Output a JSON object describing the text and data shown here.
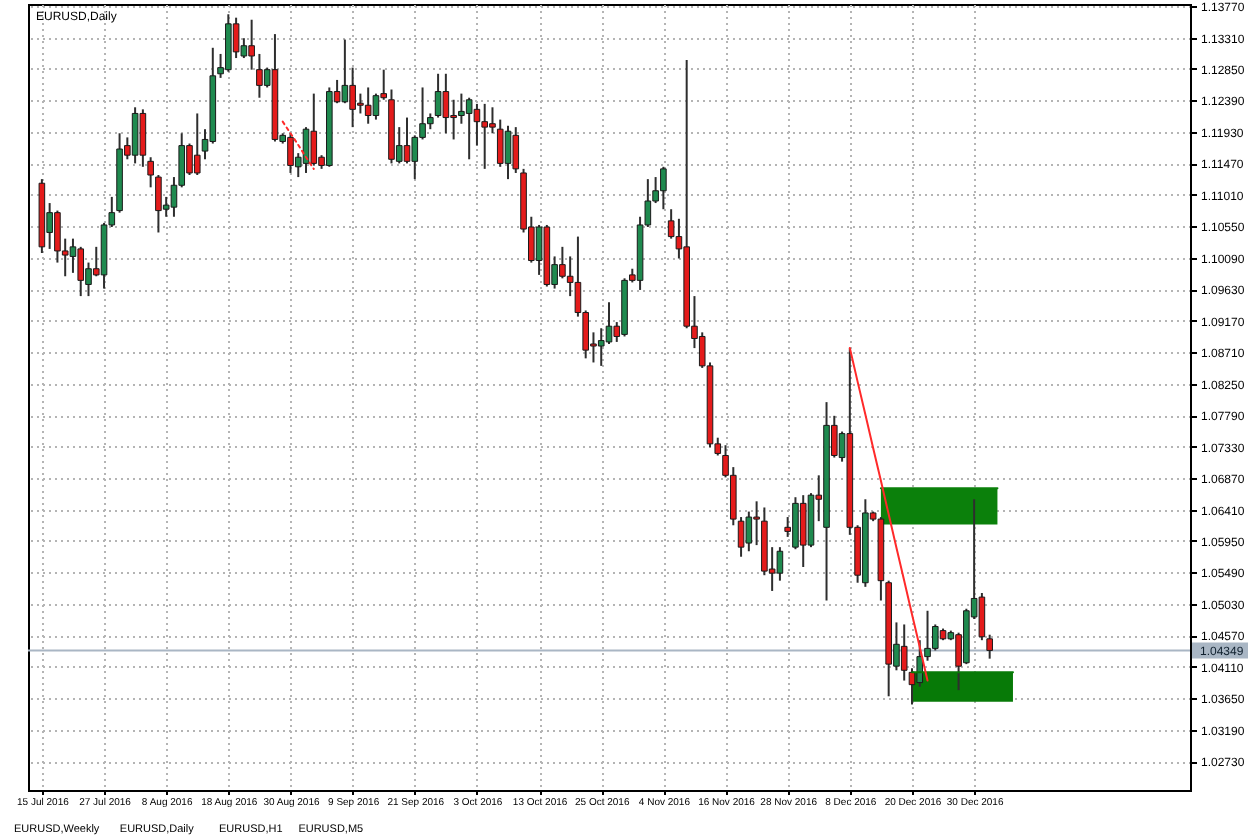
{
  "chart_data": {
    "type": "candlestick",
    "title": "EURUSD,Daily",
    "categories": [
      "15 Jul 2016",
      null,
      null,
      null,
      null,
      null,
      null,
      null,
      "27 Jul 2016",
      null,
      null,
      null,
      null,
      null,
      null,
      null,
      "8 Aug 2016",
      null,
      null,
      null,
      null,
      null,
      null,
      null,
      "18 Aug 2016",
      null,
      null,
      null,
      null,
      null,
      null,
      null,
      "30 Aug 2016",
      null,
      null,
      null,
      null,
      null,
      null,
      null,
      "9 Sep 2016",
      null,
      null,
      null,
      null,
      null,
      null,
      null,
      "21 Sep 2016",
      null,
      null,
      null,
      null,
      null,
      null,
      null,
      "3 Oct 2016",
      null,
      null,
      null,
      null,
      null,
      null,
      null,
      "13 Oct 2016",
      null,
      null,
      null,
      null,
      null,
      null,
      null,
      "25 Oct 2016",
      null,
      null,
      null,
      null,
      null,
      null,
      null,
      "4 Nov 2016",
      null,
      null,
      null,
      null,
      null,
      null,
      null,
      "16 Nov 2016",
      null,
      null,
      null,
      null,
      null,
      null,
      null,
      "28 Nov 2016",
      null,
      null,
      null,
      null,
      null,
      null,
      null,
      "8 Dec 2016",
      null,
      null,
      null,
      null,
      null,
      null,
      null,
      "20 Dec 2016",
      null,
      null,
      null,
      null,
      null,
      null,
      null,
      "30 Dec 2016",
      null,
      null,
      null,
      null,
      null,
      null,
      null,
      null,
      null,
      null,
      null,
      null,
      null,
      null,
      null,
      null,
      null,
      null,
      null,
      null,
      null,
      null,
      null,
      null,
      null,
      null
    ],
    "ohlc": [
      [
        1.1118,
        1.1124,
        1.1016,
        1.1025
      ],
      [
        1.1046,
        1.1089,
        1.1022,
        1.1075
      ],
      [
        1.1075,
        1.1078,
        1.1002,
        1.1019
      ],
      [
        1.1019,
        1.1037,
        1.0982,
        1.1013
      ],
      [
        1.1011,
        1.1037,
        1.0987,
        1.1025
      ],
      [
        1.1022,
        1.1025,
        1.0953,
        1.0976
      ],
      [
        1.097,
        1.1002,
        1.0953,
        1.0993
      ],
      [
        1.0993,
        1.1025,
        1.0982,
        1.0984
      ],
      [
        1.0984,
        1.106,
        1.0964,
        1.1057
      ],
      [
        1.1057,
        1.1098,
        1.1054,
        1.1075
      ],
      [
        1.1078,
        1.1191,
        1.1075,
        1.1168
      ],
      [
        1.1173,
        1.1185,
        1.1153,
        1.1159
      ],
      [
        1.1159,
        1.1229,
        1.1147,
        1.122
      ],
      [
        1.122,
        1.1226,
        1.1142,
        1.1159
      ],
      [
        1.115,
        1.1156,
        1.1112,
        1.113
      ],
      [
        1.1127,
        1.113,
        1.1046,
        1.1078
      ],
      [
        1.108,
        1.1098,
        1.1069,
        1.1086
      ],
      [
        1.1083,
        1.1127,
        1.1069,
        1.1115
      ],
      [
        1.1115,
        1.1191,
        1.1112,
        1.1173
      ],
      [
        1.1173,
        1.1176,
        1.113,
        1.1133
      ],
      [
        1.1159,
        1.122,
        1.113,
        1.1133
      ],
      [
        1.1165,
        1.1197,
        1.1153,
        1.1182
      ],
      [
        1.1179,
        1.1316,
        1.1176,
        1.1275
      ],
      [
        1.1278,
        1.1307,
        1.1272,
        1.1287
      ],
      [
        1.1284,
        1.1365,
        1.1281,
        1.1351
      ],
      [
        1.1351,
        1.136,
        1.1301,
        1.131
      ],
      [
        1.1304,
        1.133,
        1.1301,
        1.1319
      ],
      [
        1.1319,
        1.1357,
        1.1284,
        1.1304
      ],
      [
        1.1284,
        1.1307,
        1.1243,
        1.1261
      ],
      [
        1.1261,
        1.1287,
        1.1258,
        1.1284
      ],
      [
        1.1284,
        1.1336,
        1.1179,
        1.1182
      ],
      [
        1.1179,
        1.1191,
        1.1176,
        1.1188
      ],
      [
        1.1185,
        1.1191,
        1.1133,
        1.1144
      ],
      [
        1.1142,
        1.1162,
        1.1127,
        1.1156
      ],
      [
        1.1147,
        1.12,
        1.1133,
        1.1197
      ],
      [
        1.1194,
        1.1249,
        1.1144,
        1.1147
      ],
      [
        1.1156,
        1.1159,
        1.1139,
        1.1144
      ],
      [
        1.1144,
        1.1258,
        1.1142,
        1.1252
      ],
      [
        1.1252,
        1.1269,
        1.1235,
        1.1237
      ],
      [
        1.1237,
        1.1328,
        1.1235,
        1.1261
      ],
      [
        1.1261,
        1.1287,
        1.12,
        1.1226
      ],
      [
        1.1235,
        1.1249,
        1.122,
        1.1232
      ],
      [
        1.1232,
        1.1258,
        1.1205,
        1.1217
      ],
      [
        1.1217,
        1.1249,
        1.1211,
        1.1246
      ],
      [
        1.1249,
        1.1284,
        1.124,
        1.1243
      ],
      [
        1.124,
        1.1255,
        1.1147,
        1.1153
      ],
      [
        1.115,
        1.12,
        1.1147,
        1.1173
      ],
      [
        1.1173,
        1.1214,
        1.1147,
        1.115
      ],
      [
        1.115,
        1.1188,
        1.1124,
        1.1185
      ],
      [
        1.1185,
        1.1258,
        1.1182,
        1.1205
      ],
      [
        1.1205,
        1.122,
        1.1197,
        1.1214
      ],
      [
        1.1217,
        1.1278,
        1.1214,
        1.1252
      ],
      [
        1.1252,
        1.1278,
        1.1191,
        1.1214
      ],
      [
        1.1217,
        1.124,
        1.1182,
        1.1214
      ],
      [
        1.1217,
        1.1249,
        1.1205,
        1.1223
      ],
      [
        1.122,
        1.1243,
        1.1153,
        1.124
      ],
      [
        1.1226,
        1.1234,
        1.1173,
        1.1208
      ],
      [
        1.1208,
        1.1234,
        1.1139,
        1.12
      ],
      [
        1.1205,
        1.1229,
        1.1191,
        1.12
      ],
      [
        1.1197,
        1.1211,
        1.1142,
        1.1147
      ],
      [
        1.1147,
        1.1202,
        1.1124,
        1.1194
      ],
      [
        1.1188,
        1.12,
        1.1133,
        1.1139
      ],
      [
        1.1133,
        1.1139,
        1.1046,
        1.1051
      ],
      [
        1.1054,
        1.1069,
        1.1002,
        1.1005
      ],
      [
        1.1005,
        1.1057,
        1.0984,
        1.1054
      ],
      [
        1.1054,
        1.1057,
        1.0967,
        1.097
      ],
      [
        1.097,
        1.1011,
        1.0964,
        1.0999
      ],
      [
        1.0999,
        1.1025,
        1.0979,
        1.0982
      ],
      [
        1.0982,
        1.1011,
        1.0953,
        1.0973
      ],
      [
        1.0973,
        1.104,
        1.0923,
        1.0929
      ],
      [
        1.0929,
        1.0932,
        1.0862,
        1.0874
      ],
      [
        1.0883,
        1.09,
        1.0856,
        1.088
      ],
      [
        1.088,
        1.0906,
        1.0851,
        1.0888
      ],
      [
        1.0886,
        1.0944,
        1.0883,
        1.0909
      ],
      [
        1.0909,
        1.0915,
        1.0886,
        1.0894
      ],
      [
        1.0897,
        1.0979,
        1.0894,
        1.0976
      ],
      [
        1.0984,
        1.0993,
        1.0973,
        1.0976
      ],
      [
        1.0976,
        1.1069,
        1.0962,
        1.1057
      ],
      [
        1.1057,
        1.1124,
        1.1054,
        1.1092
      ],
      [
        1.1092,
        1.1127,
        1.1089,
        1.1107
      ],
      [
        1.1107,
        1.1142,
        1.108,
        1.1139
      ],
      [
        1.1063,
        1.108,
        1.1037,
        1.104
      ],
      [
        1.104,
        1.1066,
        1.1008,
        1.1022
      ],
      [
        1.1025,
        1.1298,
        1.0906,
        1.0909
      ],
      [
        1.0909,
        1.0953,
        1.0877,
        1.0891
      ],
      [
        1.0894,
        1.09,
        1.0848,
        1.0851
      ],
      [
        1.0851,
        1.0856,
        1.0732,
        1.0737
      ],
      [
        1.0737,
        1.0746,
        1.072,
        1.0723
      ],
      [
        1.072,
        1.0735,
        1.0688,
        1.0691
      ],
      [
        1.0691,
        1.0703,
        1.0618,
        1.0627
      ],
      [
        1.0624,
        1.063,
        1.0572,
        1.0586
      ],
      [
        1.0592,
        1.0638,
        1.058,
        1.063
      ],
      [
        1.063,
        1.0653,
        1.0589,
        1.0627
      ],
      [
        1.0624,
        1.0644,
        1.0545,
        1.0551
      ],
      [
        1.0554,
        1.0586,
        1.0522,
        1.0548
      ],
      [
        1.0548,
        1.0586,
        1.0537,
        1.058
      ],
      [
        1.0615,
        1.063,
        1.0601,
        1.0609
      ],
      [
        1.0586,
        1.0659,
        1.0583,
        1.065
      ],
      [
        1.065,
        1.0662,
        1.0557,
        1.0589
      ],
      [
        1.0589,
        1.0665,
        1.0586,
        1.0662
      ],
      [
        1.0662,
        1.0691,
        1.0624,
        1.0656
      ],
      [
        1.0615,
        1.0798,
        1.0508,
        1.0764
      ],
      [
        1.0764,
        1.0778,
        1.0717,
        1.072
      ],
      [
        1.0717,
        1.0755,
        1.0711,
        1.0752
      ],
      [
        1.0752,
        1.0877,
        1.0604,
        1.0615
      ],
      [
        1.0615,
        1.0618,
        1.0534,
        1.0545
      ],
      [
        1.0534,
        1.0656,
        1.0528,
        1.0636
      ],
      [
        1.0636,
        1.0638,
        1.0624,
        1.0627
      ],
      [
        1.0627,
        1.063,
        1.0508,
        1.0537
      ],
      [
        1.0534,
        1.0537,
        1.0368,
        1.0415
      ],
      [
        1.0412,
        1.0476,
        1.0406,
        1.0444
      ],
      [
        1.0441,
        1.0473,
        1.0391,
        1.0406
      ],
      [
        1.0403,
        1.0409,
        1.0356,
        1.0385
      ],
      [
        1.0388,
        1.045,
        1.0382,
        1.0426
      ],
      [
        1.0426,
        1.0493,
        1.042,
        1.0438
      ],
      [
        1.0438,
        1.0473,
        1.0435,
        1.047
      ],
      [
        1.0464,
        1.0467,
        1.045,
        1.0452
      ],
      [
        1.0452,
        1.0464,
        1.045,
        1.0461
      ],
      [
        1.0458,
        1.0461,
        1.0377,
        1.0412
      ],
      [
        1.0417,
        1.0496,
        1.0415,
        1.0493
      ],
      [
        1.0484,
        1.0656,
        1.0481,
        1.0511
      ],
      [
        1.0513,
        1.0519,
        1.045,
        1.0455
      ],
      [
        1.0452,
        1.0458,
        1.0423,
        1.0435
      ],
      null,
      null,
      null,
      null,
      null,
      null,
      null,
      null,
      null,
      null,
      null,
      null,
      null,
      null,
      null,
      null,
      null,
      null,
      null,
      null,
      null,
      null,
      null,
      null
    ],
    "colors": [
      "#e41b1b",
      "#1f8a4f",
      "#e41b1b",
      "#e41b1b",
      "#1f8a4f",
      "#e41b1b",
      "#1f8a4f",
      "#e41b1b",
      "#1f8a4f",
      "#1f8a4f",
      "#1f8a4f",
      "#e41b1b",
      "#1f8a4f",
      "#e41b1b",
      "#e41b1b",
      "#e41b1b",
      "#1f8a4f",
      "#1f8a4f",
      "#1f8a4f",
      "#e41b1b",
      "#e41b1b",
      "#1f8a4f",
      "#1f8a4f",
      "#1f8a4f",
      "#1f8a4f",
      "#e41b1b",
      "#1f8a4f",
      "#e41b1b",
      "#e41b1b",
      "#1f8a4f",
      "#e41b1b",
      "#1f8a4f",
      "#e41b1b",
      "#1f8a4f",
      "#1f8a4f",
      "#e41b1b",
      "#e41b1b",
      "#1f8a4f",
      "#e41b1b",
      "#1f8a4f",
      "#e41b1b",
      "#e41b1b",
      "#e41b1b",
      "#1f8a4f",
      "#e41b1b",
      "#e41b1b",
      "#1f8a4f",
      "#e41b1b",
      "#1f8a4f",
      "#1f8a4f",
      "#1f8a4f",
      "#1f8a4f",
      "#e41b1b",
      "#e41b1b",
      "#1f8a4f",
      "#1f8a4f",
      "#e41b1b",
      "#e41b1b",
      "#e41b1b",
      "#e41b1b",
      "#1f8a4f",
      "#e41b1b",
      "#e41b1b",
      "#e41b1b",
      "#1f8a4f",
      "#e41b1b",
      "#1f8a4f",
      "#e41b1b",
      "#e41b1b",
      "#e41b1b",
      "#e41b1b",
      "#e41b1b",
      "#1f8a4f",
      "#1f8a4f",
      "#e41b1b",
      "#1f8a4f",
      "#e41b1b",
      "#1f8a4f",
      "#1f8a4f",
      "#1f8a4f",
      "#1f8a4f",
      "#e41b1b",
      "#e41b1b",
      "#e41b1b",
      "#e41b1b",
      "#e41b1b",
      "#e41b1b",
      "#e41b1b",
      "#e41b1b",
      "#e41b1b",
      "#e41b1b",
      "#1f8a4f",
      "#e41b1b",
      "#e41b1b",
      "#e41b1b",
      "#1f8a4f",
      "#e41b1b",
      "#1f8a4f",
      "#e41b1b",
      "#1f8a4f",
      "#e41b1b",
      "#1f8a4f",
      "#e41b1b",
      "#1f8a4f",
      "#e41b1b",
      "#e41b1b",
      "#1f8a4f",
      "#e41b1b",
      "#e41b1b",
      "#e41b1b",
      "#1f8a4f",
      "#e41b1b",
      "#e41b1b",
      "#1f8a4f",
      "#1f8a4f",
      "#1f8a4f",
      "#e41b1b",
      "#1f8a4f",
      "#e41b1b",
      "#1f8a4f",
      "#1f8a4f",
      "#e41b1b",
      "#e41b1b",
      null,
      null,
      null,
      null,
      null,
      null,
      null,
      null,
      null,
      null,
      null,
      null,
      null,
      null,
      null,
      null,
      null,
      null,
      null,
      null,
      null,
      null,
      null,
      null
    ],
    "ylim": [
      1.0231,
      1.138
    ],
    "yticks": [
      {
        "value": 1.0273,
        "label": "1.02730"
      },
      {
        "value": 1.0319,
        "label": "1.03190"
      },
      {
        "value": 1.0365,
        "label": "1.03650"
      },
      {
        "value": 1.0411,
        "label": "1.04110"
      },
      {
        "value": 1.0457,
        "label": "1.04570"
      },
      {
        "value": 1.0503,
        "label": "1.05030"
      },
      {
        "value": 1.0549,
        "label": "1.05490"
      },
      {
        "value": 1.0595,
        "label": "1.05950"
      },
      {
        "value": 1.0641,
        "label": "1.06410"
      },
      {
        "value": 1.0687,
        "label": "1.06870"
      },
      {
        "value": 1.0733,
        "label": "1.07330"
      },
      {
        "value": 1.0779,
        "label": "1.07790"
      },
      {
        "value": 1.0825,
        "label": "1.08250"
      },
      {
        "value": 1.0871,
        "label": "1.08710"
      },
      {
        "value": 1.0917,
        "label": "1.09170"
      },
      {
        "value": 1.0963,
        "label": "1.09630"
      },
      {
        "value": 1.1009,
        "label": "1.10090"
      },
      {
        "value": 1.1055,
        "label": "1.10550"
      },
      {
        "value": 1.1101,
        "label": "1.11010"
      },
      {
        "value": 1.1147,
        "label": "1.11470"
      },
      {
        "value": 1.1193,
        "label": "1.11930"
      },
      {
        "value": 1.1239,
        "label": "1.12390"
      },
      {
        "value": 1.1285,
        "label": "1.12850"
      },
      {
        "value": 1.1331,
        "label": "1.13310"
      },
      {
        "value": 1.1377,
        "label": "1.13770"
      }
    ],
    "grid": true,
    "series": [
      {
        "type": "line",
        "color": "#0b800b",
        "values": [
          null,
          null,
          null,
          null,
          null,
          null,
          null,
          null,
          null,
          null,
          null,
          null,
          null,
          null,
          null,
          null,
          null,
          null,
          null,
          null,
          null,
          null,
          null,
          null,
          null,
          null,
          null,
          null,
          null,
          null,
          null,
          null,
          null,
          null,
          null,
          null,
          null,
          null,
          null,
          null,
          null,
          null,
          null,
          null,
          null,
          null,
          null,
          null,
          null,
          null,
          null,
          null,
          null,
          null,
          null,
          null,
          null,
          null,
          null,
          null,
          null,
          null,
          null,
          null,
          null,
          null,
          null,
          null,
          null,
          null,
          null,
          null,
          null,
          null,
          null,
          null,
          null,
          null,
          null,
          null,
          null,
          null,
          null,
          null,
          null,
          null,
          null,
          null,
          null,
          null,
          null,
          null,
          null,
          null,
          null,
          null,
          null,
          null,
          null,
          null,
          null,
          null,
          null,
          null,
          null,
          null,
          null,
          null,
          1.0672,
          1.0672,
          1.0672,
          1.0672,
          1.0672,
          1.0672,
          1.0672,
          1.0672,
          1.0672,
          1.0672,
          1.0672,
          1.0672,
          1.0672,
          1.0672,
          1.0672,
          1.0672,
          null,
          null,
          null,
          null,
          null,
          null,
          null,
          null,
          null,
          null,
          null,
          null,
          null,
          null,
          null,
          null,
          null,
          null,
          null,
          null,
          null,
          null,
          null
        ],
        "upper": [
          null,
          null,
          null,
          null,
          null,
          null,
          null,
          null,
          null,
          null,
          null,
          null,
          null,
          null,
          null,
          null,
          null,
          null,
          null,
          null,
          null,
          null,
          null,
          null,
          null,
          null,
          null,
          null,
          null,
          null,
          null,
          null,
          null,
          null,
          null,
          null,
          null,
          null,
          null,
          null,
          null,
          null,
          null,
          null,
          null,
          null,
          null,
          null,
          null,
          null,
          null,
          null,
          null,
          null,
          null,
          null,
          null,
          null,
          null,
          null,
          null,
          null,
          null,
          null,
          null,
          null,
          null,
          null,
          null,
          null,
          null,
          null,
          null,
          null,
          null,
          null,
          null,
          null,
          null,
          null,
          null,
          null,
          null,
          null,
          null,
          null,
          null,
          null,
          null,
          null,
          null,
          null,
          null,
          null,
          null,
          null,
          null,
          null,
          null,
          null,
          null,
          null,
          null,
          null,
          null,
          null,
          null,
          null,
          1.0672,
          1.0672,
          1.0672,
          1.0672,
          1.0672,
          1.0672,
          1.0672,
          1.0672,
          1.0672,
          1.0672,
          1.0672,
          1.0672,
          1.0672,
          1.0672,
          1.0672,
          1.0672,
          null,
          null,
          null,
          null,
          null,
          null,
          null,
          null,
          null,
          null,
          null,
          null,
          null,
          null,
          null,
          null,
          null,
          null,
          null,
          null,
          null,
          null,
          null
        ],
        "lower": [
          null,
          null,
          null,
          null,
          null,
          null,
          null,
          null,
          null,
          null,
          null,
          null,
          null,
          null,
          null,
          null,
          null,
          null,
          null,
          null,
          null,
          null,
          null,
          null,
          null,
          null,
          null,
          null,
          null,
          null,
          null,
          null,
          null,
          null,
          null,
          null,
          null,
          null,
          null,
          null,
          null,
          null,
          null,
          null,
          null,
          null,
          null,
          null,
          null,
          null,
          null,
          null,
          null,
          null,
          null,
          null,
          null,
          null,
          null,
          null,
          null,
          null,
          null,
          null,
          null,
          null,
          null,
          null,
          null,
          null,
          null,
          null,
          null,
          null,
          null,
          null,
          null,
          null,
          null,
          null,
          null,
          null,
          null,
          null,
          null,
          null,
          null,
          null,
          null,
          null,
          null,
          null,
          null,
          null,
          null,
          null,
          null,
          null,
          null,
          null,
          null,
          null,
          null,
          null,
          null,
          null,
          null,
          null,
          1.0619,
          1.0619,
          1.0619,
          1.0619,
          1.0619,
          1.0619,
          1.0619,
          1.0619,
          1.0619,
          1.0619,
          1.0619,
          1.0619,
          1.0619,
          1.0619,
          1.0619,
          1.0619,
          null,
          null,
          null,
          null,
          null,
          null,
          null,
          null,
          null,
          null,
          null,
          null,
          null,
          null,
          null,
          null,
          null,
          null,
          null,
          null,
          null,
          null,
          null
        ]
      },
      {
        "type": "line",
        "color": "#077a07",
        "values": [
          null,
          null,
          null,
          null,
          null,
          null,
          null,
          null,
          null,
          null,
          null,
          null,
          null,
          null,
          null,
          null,
          null,
          null,
          null,
          null,
          null,
          null,
          null,
          null,
          null,
          null,
          null,
          null,
          null,
          null,
          null,
          null,
          null,
          null,
          null,
          null,
          null,
          null,
          null,
          null,
          null,
          null,
          null,
          null,
          null,
          null,
          null,
          null,
          null,
          null,
          null,
          null,
          null,
          null,
          null,
          null,
          null,
          null,
          null,
          null,
          null,
          null,
          null,
          null,
          null,
          null,
          null,
          null,
          null,
          null,
          null,
          null,
          null,
          null,
          null,
          null,
          null,
          null,
          null,
          null,
          null,
          null,
          null,
          null,
          null,
          null,
          null,
          null,
          null,
          null,
          null,
          null,
          null,
          null,
          null,
          null,
          null,
          null,
          null,
          null,
          null,
          null,
          null,
          null,
          null,
          null,
          null,
          null,
          null,
          null,
          null,
          null,
          1.0403,
          1.0403,
          1.0403,
          1.0403,
          1.0403,
          1.0403,
          1.0403,
          1.0403,
          1.0403,
          1.0403,
          1.0403,
          1.0403,
          1.0403,
          1.0403,
          null,
          null,
          null,
          null,
          null,
          null,
          null,
          null,
          null,
          null,
          null,
          null,
          null,
          null,
          null,
          null,
          null,
          null,
          null,
          null,
          null
        ],
        "upper": [
          null,
          null,
          null,
          null,
          null,
          null,
          null,
          null,
          null,
          null,
          null,
          null,
          null,
          null,
          null,
          null,
          null,
          null,
          null,
          null,
          null,
          null,
          null,
          null,
          null,
          null,
          null,
          null,
          null,
          null,
          null,
          null,
          null,
          null,
          null,
          null,
          null,
          null,
          null,
          null,
          null,
          null,
          null,
          null,
          null,
          null,
          null,
          null,
          null,
          null,
          null,
          null,
          null,
          null,
          null,
          null,
          null,
          null,
          null,
          null,
          null,
          null,
          null,
          null,
          null,
          null,
          null,
          null,
          null,
          null,
          null,
          null,
          null,
          null,
          null,
          null,
          null,
          null,
          null,
          null,
          null,
          null,
          null,
          null,
          null,
          null,
          null,
          null,
          null,
          null,
          null,
          null,
          null,
          null,
          null,
          null,
          null,
          null,
          null,
          null,
          null,
          null,
          null,
          null,
          null,
          null,
          null,
          null,
          null,
          null,
          null,
          null,
          1.0403,
          1.0403,
          1.0403,
          1.0403,
          1.0403,
          1.0403,
          1.0403,
          1.0403,
          1.0403,
          1.0403,
          1.0403,
          1.0403,
          1.0403,
          1.0403,
          null,
          null,
          null,
          null,
          null,
          null,
          null,
          null,
          null,
          null,
          null,
          null,
          null,
          null,
          null,
          null,
          null,
          null,
          null,
          null,
          null
        ],
        "lower": [
          null,
          null,
          null,
          null,
          null,
          null,
          null,
          null,
          null,
          null,
          null,
          null,
          null,
          null,
          null,
          null,
          null,
          null,
          null,
          null,
          null,
          null,
          null,
          null,
          null,
          null,
          null,
          null,
          null,
          null,
          null,
          null,
          null,
          null,
          null,
          null,
          null,
          null,
          null,
          null,
          null,
          null,
          null,
          null,
          null,
          null,
          null,
          null,
          null,
          null,
          null,
          null,
          null,
          null,
          null,
          null,
          null,
          null,
          null,
          null,
          null,
          null,
          null,
          null,
          null,
          null,
          null,
          null,
          null,
          null,
          null,
          null,
          null,
          null,
          null,
          null,
          null,
          null,
          null,
          null,
          null,
          null,
          null,
          null,
          null,
          null,
          null,
          null,
          null,
          null,
          null,
          null,
          null,
          null,
          null,
          null,
          null,
          null,
          null,
          null,
          null,
          null,
          null,
          null,
          null,
          null,
          null,
          null,
          null,
          null,
          null,
          null,
          1.036,
          1.036,
          1.036,
          1.036,
          1.036,
          1.036,
          1.036,
          1.036,
          1.036,
          1.036,
          1.036,
          1.036,
          1.036,
          1.036,
          null,
          null,
          null,
          null,
          null,
          null,
          null,
          null,
          null,
          null,
          null,
          null,
          null,
          null,
          null,
          null,
          null,
          null,
          null,
          null,
          null
        ]
      },
      {
        "type": "line",
        "color": "#ff2a2a",
        "line_style": "dotted",
        "values": [
          null,
          null,
          null,
          null,
          null,
          null,
          null,
          null,
          null,
          null,
          null,
          null,
          null,
          null,
          null,
          null,
          null,
          null,
          null,
          null,
          null,
          null,
          null,
          null,
          null,
          null,
          null,
          null,
          null,
          null,
          null,
          1.1208,
          1.1191,
          1.1174,
          1.1156,
          1.1139,
          null,
          null,
          null,
          null,
          null,
          null,
          null,
          null,
          null,
          null,
          null,
          null,
          null,
          null,
          null,
          null,
          null,
          null,
          null,
          null,
          null,
          null,
          null,
          null,
          null,
          null,
          null,
          null,
          null,
          null,
          null,
          null,
          null,
          null,
          null,
          null,
          null,
          null,
          null,
          null,
          null,
          null,
          null,
          null,
          null,
          null,
          null,
          null,
          null,
          null,
          null,
          null,
          null,
          null,
          null,
          null,
          null,
          null,
          null,
          null,
          null,
          null,
          null,
          null,
          null,
          null,
          null,
          null,
          null,
          null,
          null,
          null,
          null,
          null,
          null,
          null,
          null,
          null,
          null,
          null,
          null,
          null,
          null,
          null,
          null,
          null,
          null,
          null,
          null,
          null,
          null,
          null,
          null,
          null,
          null,
          null,
          null,
          null,
          null,
          null,
          null,
          null,
          null,
          null,
          null,
          null,
          null,
          null,
          null,
          null,
          null
        ]
      },
      {
        "type": "line",
        "color": "#ff2a2a",
        "values": [
          null,
          null,
          null,
          null,
          null,
          null,
          null,
          null,
          null,
          null,
          null,
          null,
          null,
          null,
          null,
          null,
          null,
          null,
          null,
          null,
          null,
          null,
          null,
          null,
          null,
          null,
          null,
          null,
          null,
          null,
          null,
          null,
          null,
          null,
          null,
          null,
          null,
          null,
          null,
          null,
          null,
          null,
          null,
          null,
          null,
          null,
          null,
          null,
          null,
          null,
          null,
          null,
          null,
          null,
          null,
          null,
          null,
          null,
          null,
          null,
          null,
          null,
          null,
          null,
          null,
          null,
          null,
          null,
          null,
          null,
          null,
          null,
          null,
          null,
          null,
          null,
          null,
          null,
          null,
          null,
          null,
          null,
          null,
          null,
          null,
          null,
          null,
          null,
          null,
          null,
          null,
          null,
          null,
          null,
          null,
          null,
          null,
          null,
          null,
          null,
          null,
          null,
          null,
          null,
          1.0877,
          1.0828,
          1.078,
          1.0731,
          1.0683,
          1.0634,
          1.0585,
          1.0537,
          1.0488,
          1.044,
          1.0391,
          null,
          null,
          null,
          null,
          null,
          null,
          null,
          null,
          null,
          null,
          null,
          null,
          null,
          null,
          null,
          null,
          null,
          null,
          null,
          null,
          null,
          null,
          null,
          null,
          null,
          null,
          null,
          null,
          null,
          null,
          null,
          null
        ]
      }
    ],
    "ref_lines": [
      {
        "axis": "y",
        "value": 1.04349,
        "label": "1.04349",
        "color": "#a9b6c4"
      }
    ],
    "annotations": [
      "EURUSD,Weekly",
      "EURUSD,Daily",
      "EURUSD,H1",
      "EURUSD,M5"
    ]
  }
}
